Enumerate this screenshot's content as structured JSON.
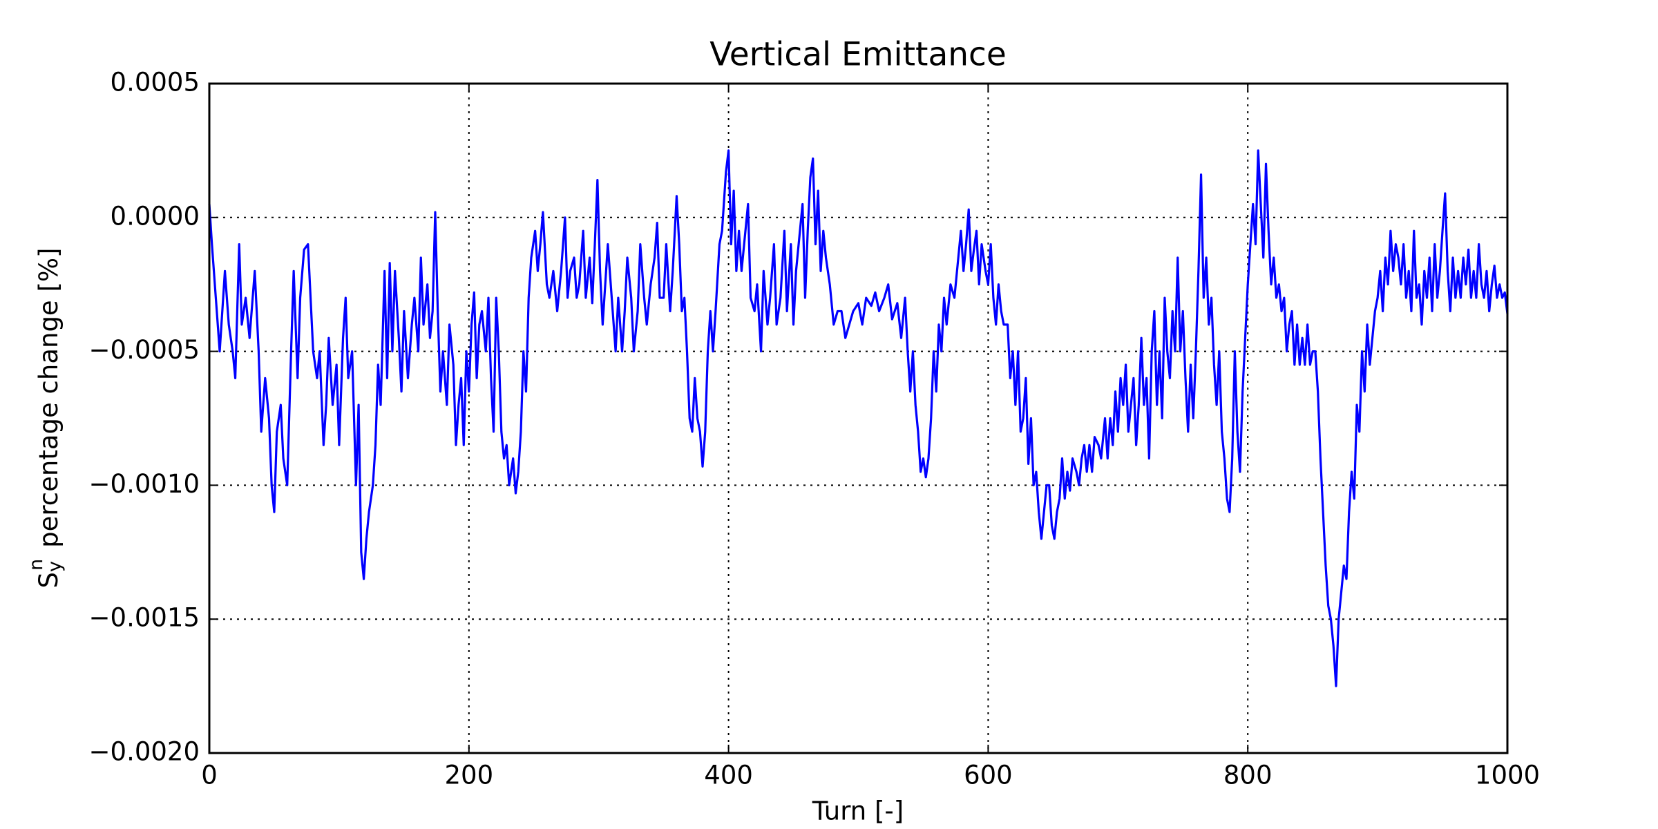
{
  "chart_data": {
    "type": "line",
    "title": "Vertical Emittance",
    "xlabel": "Turn [-]",
    "ylabel": {
      "symbol": "S",
      "subscript": "y",
      "superscript": "n",
      "text": "percentage change [%]"
    },
    "color": "#0000ff",
    "grid": true,
    "grid_style": "dotted",
    "xlim": [
      0,
      1000
    ],
    "xticks": [
      0,
      200,
      400,
      600,
      800,
      1000
    ],
    "ylim": [
      -0.002,
      0.0005
    ],
    "yticks": [
      {
        "value": -0.002,
        "label": "−0.0020"
      },
      {
        "value": -0.0015,
        "label": "−0.0015"
      },
      {
        "value": -0.001,
        "label": "−0.0010"
      },
      {
        "value": -0.0005,
        "label": "−0.0005"
      },
      {
        "value": 0,
        "label": "0.0000"
      },
      0.0005
    ],
    "x": [
      0,
      2,
      5,
      8,
      12,
      15,
      18,
      20,
      23,
      25,
      28,
      31,
      35,
      38,
      40,
      43,
      46,
      48,
      50,
      52,
      55,
      57,
      60,
      63,
      65,
      68,
      70,
      73,
      76,
      78,
      80,
      83,
      85,
      88,
      90,
      92,
      95,
      98,
      100,
      103,
      105,
      107,
      110,
      113,
      115,
      117,
      119,
      121,
      123,
      126,
      128,
      130,
      132,
      135,
      137,
      139,
      141,
      143,
      146,
      148,
      150,
      153,
      156,
      158,
      161,
      163,
      165,
      168,
      170,
      172,
      174,
      176,
      178,
      180,
      183,
      185,
      188,
      190,
      192,
      194,
      196,
      198,
      200,
      202,
      204,
      206,
      208,
      210,
      213,
      215,
      217,
      219,
      221,
      223,
      225,
      227,
      229,
      231,
      234,
      236,
      238,
      240,
      242,
      244,
      246,
      248,
      251,
      253,
      255,
      257,
      260,
      262,
      265,
      268,
      271,
      274,
      276,
      278,
      281,
      283,
      285,
      288,
      290,
      293,
      295,
      297,
      299,
      301,
      303,
      305,
      307,
      310,
      313,
      315,
      318,
      320,
      322,
      325,
      327,
      330,
      332,
      335,
      337,
      340,
      343,
      345,
      347,
      350,
      352,
      355,
      357,
      360,
      362,
      364,
      366,
      368,
      370,
      372,
      374,
      376,
      378,
      380,
      382,
      384,
      386,
      388,
      390,
      393,
      395,
      398,
      400,
      402,
      404,
      406,
      408,
      410,
      412,
      415,
      417,
      420,
      422,
      425,
      427,
      430,
      432,
      435,
      437,
      440,
      443,
      445,
      448,
      450,
      452,
      455,
      457,
      459,
      461,
      463,
      465,
      467,
      469,
      471,
      473,
      475,
      478,
      481,
      484,
      487,
      490,
      493,
      496,
      500,
      503,
      506,
      510,
      513,
      516,
      520,
      523,
      526,
      530,
      533,
      536,
      538,
      540,
      542,
      544,
      546,
      548,
      550,
      552,
      554,
      556,
      558,
      560,
      562,
      564,
      566,
      568,
      571,
      574,
      577,
      579,
      581,
      583,
      585,
      587,
      589,
      591,
      593,
      595,
      598,
      600,
      602,
      604,
      606,
      608,
      610,
      612,
      615,
      617,
      619,
      621,
      623,
      625,
      627,
      629,
      631,
      633,
      635,
      637,
      639,
      641,
      643,
      645,
      647,
      649,
      651,
      653,
      655,
      657,
      659,
      661,
      663,
      665,
      668,
      670,
      672,
      674,
      676,
      678,
      680,
      682,
      685,
      687,
      690,
      692,
      694,
      696,
      698,
      700,
      702,
      704,
      706,
      708,
      710,
      712,
      714,
      716,
      718,
      720,
      722,
      724,
      726,
      728,
      730,
      732,
      734,
      736,
      738,
      740,
      742,
      744,
      746,
      748,
      750,
      752,
      754,
      756,
      758,
      760,
      762,
      764,
      766,
      768,
      770,
      772,
      774,
      776,
      778,
      780,
      782,
      784,
      786,
      788,
      790,
      792,
      794,
      796,
      798,
      800,
      802,
      804,
      806,
      808,
      810,
      812,
      814,
      816,
      818,
      820,
      822,
      824,
      826,
      828,
      830,
      832,
      834,
      836,
      838,
      840,
      842,
      844,
      846,
      848,
      850,
      852,
      854,
      856,
      858,
      860,
      862,
      864,
      866,
      868,
      870,
      872,
      874,
      876,
      878,
      880,
      882,
      884,
      886,
      888,
      890,
      892,
      894,
      896,
      898,
      900,
      902,
      904,
      906,
      908,
      910,
      912,
      914,
      916,
      918,
      920,
      922,
      924,
      926,
      928,
      930,
      932,
      934,
      936,
      938,
      940,
      942,
      944,
      946,
      948,
      950,
      952,
      954,
      956,
      958,
      960,
      962,
      964,
      966,
      968,
      970,
      972,
      974,
      976,
      978,
      980,
      982,
      984,
      986,
      988,
      990,
      992,
      994,
      996,
      998,
      1000
    ],
    "values": [
      5e-05,
      -0.0001,
      -0.0003,
      -0.0005,
      -0.0002,
      -0.0004,
      -0.0005,
      -0.0006,
      -0.0001,
      -0.0004,
      -0.0003,
      -0.00045,
      -0.0002,
      -0.0005,
      -0.0008,
      -0.0006,
      -0.00075,
      -0.001,
      -0.0011,
      -0.0008,
      -0.0007,
      -0.0009,
      -0.001,
      -0.0005,
      -0.0002,
      -0.0006,
      -0.0003,
      -0.00012,
      -0.0001,
      -0.0003,
      -0.0005,
      -0.0006,
      -0.0005,
      -0.00085,
      -0.0007,
      -0.00045,
      -0.0007,
      -0.00055,
      -0.00085,
      -0.00045,
      -0.0003,
      -0.0006,
      -0.0005,
      -0.001,
      -0.0007,
      -0.00125,
      -0.00135,
      -0.0012,
      -0.0011,
      -0.001,
      -0.00085,
      -0.00055,
      -0.0007,
      -0.0002,
      -0.0006,
      -0.00017,
      -0.0005,
      -0.0002,
      -0.00045,
      -0.00065,
      -0.00035,
      -0.0006,
      -0.0004,
      -0.0003,
      -0.0005,
      -0.00015,
      -0.0004,
      -0.00025,
      -0.00045,
      -0.00035,
      2e-05,
      -0.00035,
      -0.00065,
      -0.0005,
      -0.0007,
      -0.0004,
      -0.00055,
      -0.00085,
      -0.0007,
      -0.0006,
      -0.00085,
      -0.0005,
      -0.00065,
      -0.0004,
      -0.00028,
      -0.0006,
      -0.0004,
      -0.00035,
      -0.0005,
      -0.0003,
      -0.0006,
      -0.0008,
      -0.0003,
      -0.0005,
      -0.0008,
      -0.0009,
      -0.00085,
      -0.001,
      -0.0009,
      -0.00103,
      -0.00095,
      -0.0008,
      -0.0005,
      -0.00065,
      -0.0003,
      -0.00015,
      -5e-05,
      -0.0002,
      -0.0001,
      2e-05,
      -0.00025,
      -0.0003,
      -0.0002,
      -0.00035,
      -0.0002,
      0,
      -0.0003,
      -0.0002,
      -0.00015,
      -0.0003,
      -0.00025,
      -5e-05,
      -0.0003,
      -0.00015,
      -0.00032,
      -0.0001,
      0.00014,
      -0.0002,
      -0.0004,
      -0.00025,
      -0.0001,
      -0.0003,
      -0.0005,
      -0.0003,
      -0.0005,
      -0.00035,
      -0.00015,
      -0.0003,
      -0.0005,
      -0.00035,
      -0.0001,
      -0.0003,
      -0.0004,
      -0.00025,
      -0.00015,
      -2e-05,
      -0.0003,
      -0.0003,
      -0.0001,
      -0.00035,
      -0.0002,
      8e-05,
      -0.0001,
      -0.00035,
      -0.0003,
      -0.0005,
      -0.00075,
      -0.0008,
      -0.0006,
      -0.00075,
      -0.0008,
      -0.00093,
      -0.0008,
      -0.0005,
      -0.00035,
      -0.0005,
      -0.00035,
      -0.0001,
      -5e-05,
      0.00017,
      0.00025,
      -0.0001,
      0.0001,
      -0.0002,
      -5e-05,
      -0.0002,
      -0.0001,
      5e-05,
      -0.0003,
      -0.00035,
      -0.00025,
      -0.0005,
      -0.0002,
      -0.0004,
      -0.0003,
      -0.0001,
      -0.0004,
      -0.0003,
      -5e-05,
      -0.00035,
      -0.0001,
      -0.0004,
      -0.0002,
      -5e-05,
      5e-05,
      -0.0003,
      -5e-05,
      0.00015,
      0.00022,
      -0.0001,
      0.0001,
      -0.0002,
      -5e-05,
      -0.00015,
      -0.00025,
      -0.0004,
      -0.00035,
      -0.00035,
      -0.00045,
      -0.0004,
      -0.00035,
      -0.00032,
      -0.0004,
      -0.0003,
      -0.00033,
      -0.00028,
      -0.00035,
      -0.0003,
      -0.00025,
      -0.00038,
      -0.00032,
      -0.00045,
      -0.0003,
      -0.0005,
      -0.00065,
      -0.0005,
      -0.0007,
      -0.0008,
      -0.00095,
      -0.0009,
      -0.00097,
      -0.0009,
      -0.00075,
      -0.0005,
      -0.00065,
      -0.0004,
      -0.0005,
      -0.0003,
      -0.0004,
      -0.00025,
      -0.0003,
      -0.00015,
      -5e-05,
      -0.0002,
      -0.0001,
      3e-05,
      -0.0002,
      -0.00012,
      -5e-05,
      -0.00025,
      -0.0001,
      -0.0002,
      -0.00025,
      -0.0001,
      -0.0003,
      -0.0004,
      -0.00025,
      -0.00035,
      -0.0004,
      -0.0004,
      -0.0006,
      -0.0005,
      -0.0007,
      -0.0005,
      -0.0008,
      -0.00075,
      -0.0006,
      -0.00092,
      -0.00075,
      -0.001,
      -0.00095,
      -0.0011,
      -0.0012,
      -0.0011,
      -0.001,
      -0.001,
      -0.00115,
      -0.0012,
      -0.0011,
      -0.00105,
      -0.0009,
      -0.00105,
      -0.00095,
      -0.00102,
      -0.0009,
      -0.00095,
      -0.001,
      -0.0009,
      -0.00085,
      -0.00095,
      -0.00085,
      -0.00095,
      -0.00082,
      -0.00085,
      -0.0009,
      -0.00075,
      -0.0009,
      -0.00075,
      -0.00085,
      -0.00065,
      -0.0008,
      -0.0006,
      -0.0007,
      -0.00055,
      -0.0008,
      -0.0007,
      -0.0006,
      -0.00085,
      -0.0007,
      -0.00045,
      -0.0007,
      -0.0006,
      -0.0009,
      -0.0005,
      -0.00035,
      -0.0007,
      -0.0005,
      -0.00075,
      -0.0003,
      -0.0005,
      -0.0006,
      -0.00035,
      -0.0005,
      -0.00015,
      -0.0005,
      -0.00035,
      -0.0006,
      -0.0008,
      -0.00055,
      -0.00075,
      -0.0005,
      -0.0002,
      0.00016,
      -0.0003,
      -0.00015,
      -0.0004,
      -0.0003,
      -0.00055,
      -0.0007,
      -0.0005,
      -0.0008,
      -0.0009,
      -0.00105,
      -0.0011,
      -0.0009,
      -0.0005,
      -0.0008,
      -0.00095,
      -0.00065,
      -0.00045,
      -0.00025,
      -0.0001,
      5e-05,
      -0.0001,
      0.00025,
      5e-05,
      -0.00015,
      0.0002,
      -5e-05,
      -0.00025,
      -0.00015,
      -0.0003,
      -0.00025,
      -0.00035,
      -0.0003,
      -0.0005,
      -0.0004,
      -0.00035,
      -0.00055,
      -0.0004,
      -0.00055,
      -0.00045,
      -0.00055,
      -0.0004,
      -0.00055,
      -0.0005,
      -0.0005,
      -0.00065,
      -0.0009,
      -0.0011,
      -0.0013,
      -0.00145,
      -0.0015,
      -0.0016,
      -0.00175,
      -0.0015,
      -0.0014,
      -0.0013,
      -0.00135,
      -0.0011,
      -0.00095,
      -0.00105,
      -0.0007,
      -0.0008,
      -0.0005,
      -0.00065,
      -0.0004,
      -0.00055,
      -0.00045,
      -0.00035,
      -0.0003,
      -0.0002,
      -0.00035,
      -0.00015,
      -0.00025,
      -5e-05,
      -0.0002,
      -0.0001,
      -0.00015,
      -0.00025,
      -0.0001,
      -0.0003,
      -0.0002,
      -0.00035,
      -5e-05,
      -0.0003,
      -0.00025,
      -0.0004,
      -0.0002,
      -0.0003,
      -0.00015,
      -0.00035,
      -0.0001,
      -0.0003,
      -0.0002,
      -5e-05,
      9e-05,
      -0.0002,
      -0.00035,
      -0.00015,
      -0.0003,
      -0.0002,
      -0.0003,
      -0.00015,
      -0.00025,
      -0.00012,
      -0.0003,
      -0.0002,
      -0.0003,
      -0.0001,
      -0.00025,
      -0.0003,
      -0.0002,
      -0.00035,
      -0.00025,
      -0.00018,
      -0.0003,
      -0.00025,
      -0.0003,
      -0.00028,
      -0.00036
    ]
  }
}
